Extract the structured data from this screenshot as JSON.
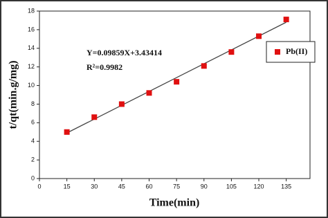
{
  "chart_data": {
    "type": "scatter",
    "x_label": "Time(min)",
    "y_label": "t/qt(min.g/mg)",
    "x": [
      15,
      30,
      45,
      60,
      75,
      90,
      105,
      120,
      135
    ],
    "series": [
      {
        "name": "Pb(II)",
        "color": "#e01010",
        "values": [
          5.0,
          6.6,
          8.0,
          9.2,
          10.4,
          12.1,
          13.6,
          15.3,
          17.1
        ]
      }
    ],
    "fit_line": {
      "color": "#444444",
      "x": [
        15,
        135
      ],
      "values": [
        4.9,
        16.8
      ]
    },
    "annotations": [
      "Y=0.09859X+3.43414",
      "R²=0.9982"
    ],
    "xlim": [
      0,
      148
    ],
    "xticks": [
      0,
      15,
      30,
      45,
      60,
      75,
      90,
      105,
      120,
      135
    ],
    "ylim": [
      0,
      18
    ],
    "yticks": [
      0,
      2,
      4,
      6,
      8,
      10,
      12,
      14,
      16,
      18
    ],
    "legend_position": "upper right",
    "grid": false
  }
}
